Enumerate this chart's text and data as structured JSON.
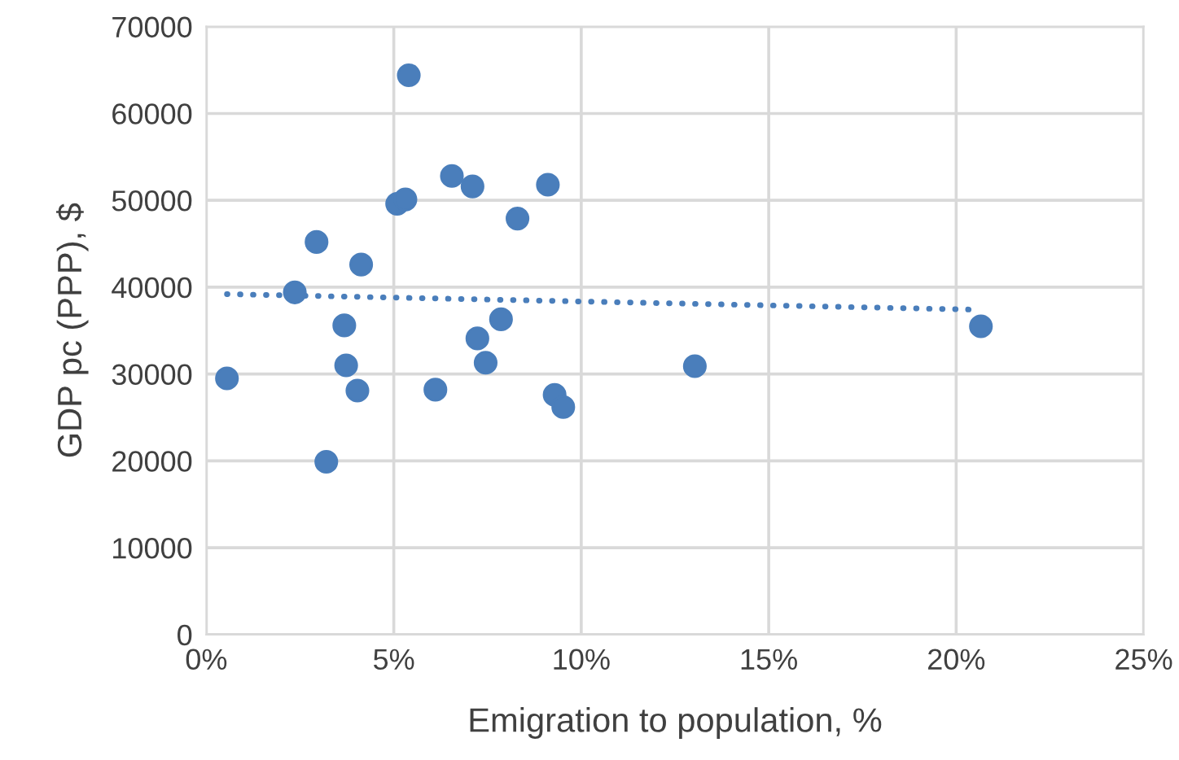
{
  "chart_data": {
    "type": "scatter",
    "xlabel": "Emigration to population, %",
    "ylabel": "GDP pc (PPP), $",
    "xlim": [
      0,
      25
    ],
    "ylim": [
      0,
      70000
    ],
    "xticks": [
      {
        "value": 0,
        "label": "0%"
      },
      {
        "value": 5,
        "label": "5%"
      },
      {
        "value": 10,
        "label": "10%"
      },
      {
        "value": 15,
        "label": "15%"
      },
      {
        "value": 20,
        "label": "20%"
      },
      {
        "value": 25,
        "label": "25%"
      }
    ],
    "yticks": [
      0,
      10000,
      20000,
      30000,
      40000,
      50000,
      60000,
      70000
    ],
    "grid": true,
    "legend": false,
    "series": [
      {
        "color": "#4a7ebb",
        "marker": "circle",
        "x": [
          0.55,
          2.36,
          2.94,
          3.2,
          3.68,
          3.73,
          4.03,
          4.13,
          5.09,
          5.31,
          5.4,
          6.11,
          6.55,
          7.1,
          7.23,
          7.45,
          7.86,
          8.3,
          9.11,
          9.29,
          9.52,
          13.03,
          20.66
        ],
        "values": [
          29500,
          39400,
          45200,
          19900,
          35600,
          31000,
          28100,
          42600,
          49600,
          50100,
          64400,
          28200,
          52800,
          51600,
          34100,
          31300,
          36300,
          47900,
          51800,
          27600,
          26200,
          30900,
          35500
        ]
      },
      {
        "type": "line",
        "color": "#4a7ebb",
        "line_style": "dotted",
        "marker": "none",
        "x": [
          0.55,
          20.66
        ],
        "values": [
          39200,
          37400
        ]
      }
    ]
  }
}
